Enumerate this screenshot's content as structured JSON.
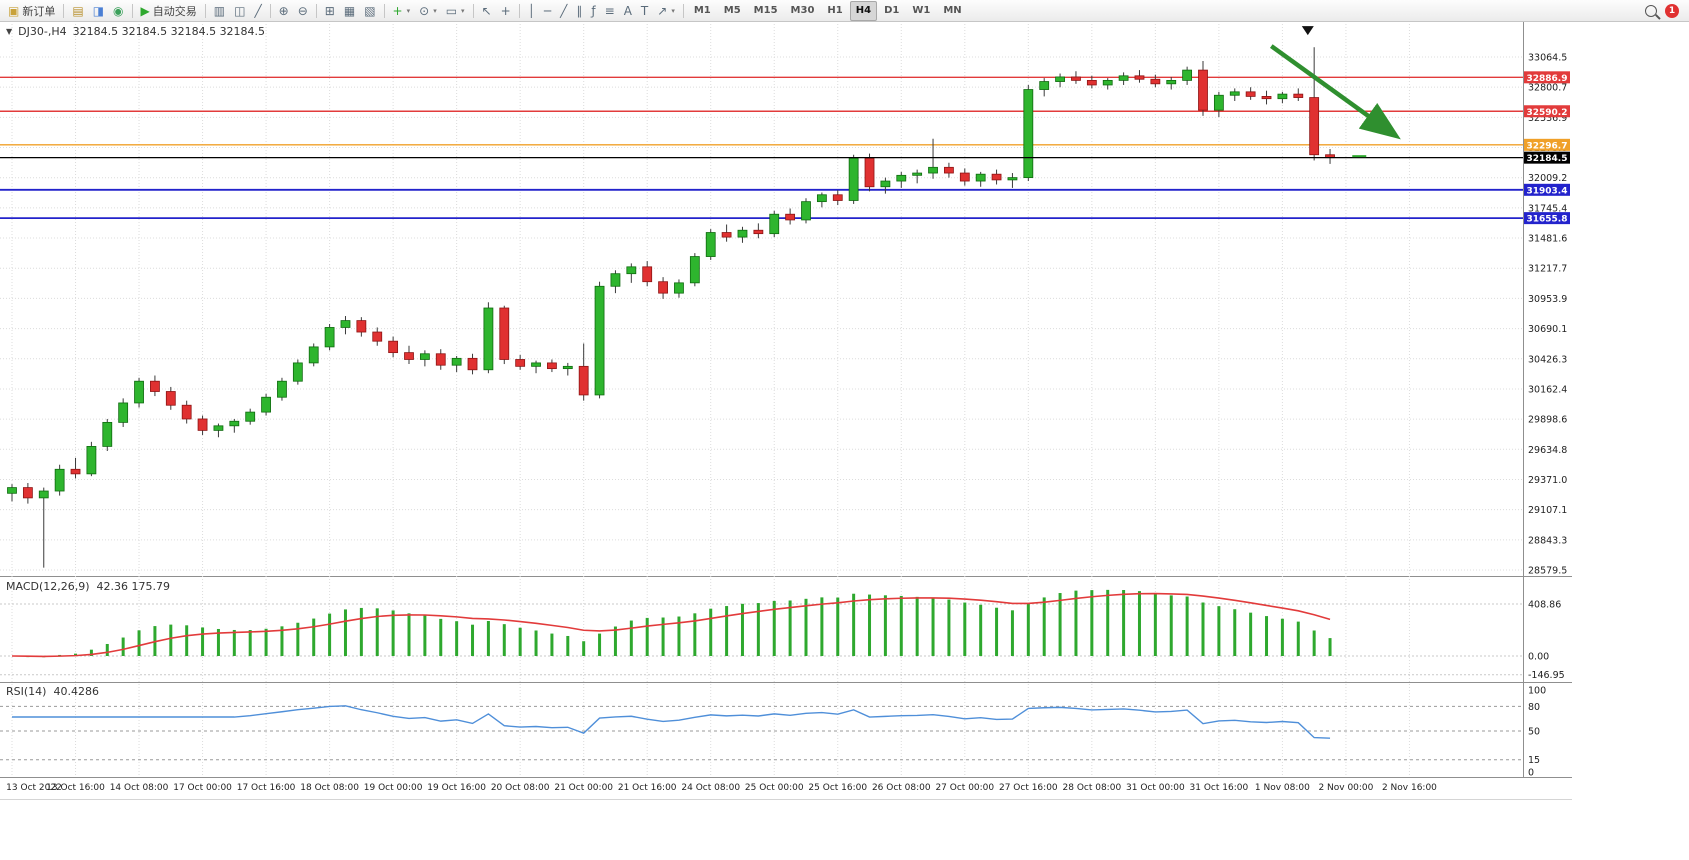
{
  "toolbar": {
    "groups": [
      {
        "items": [
          {
            "name": "new-order-button",
            "glyph": "▣",
            "glyph_color": "#c9a23a",
            "label": "新订单"
          }
        ]
      },
      {
        "items": [
          {
            "name": "charts-icon",
            "glyph": "▤",
            "glyph_color": "#b8912f"
          },
          {
            "name": "profile-icon",
            "glyph": "◨",
            "glyph_color": "#4a7fd4"
          },
          {
            "name": "support-icon",
            "glyph": "◉",
            "glyph_color": "#3aa05a"
          }
        ]
      },
      {
        "items": [
          {
            "name": "autotrade-button",
            "glyph": "▶",
            "glyph_color": "#2ea82e",
            "label": "自动交易"
          }
        ]
      },
      {
        "items": [
          {
            "name": "bar-chart-icon",
            "glyph": "▥"
          },
          {
            "name": "candlestick-chart-icon",
            "glyph": "◫"
          },
          {
            "name": "line-chart-icon",
            "glyph": "╱"
          }
        ]
      },
      {
        "items": [
          {
            "name": "zoom-in-icon",
            "glyph": "⊕"
          },
          {
            "name": "zoom-out-icon",
            "glyph": "⊖"
          }
        ]
      },
      {
        "items": [
          {
            "name": "tile-windows-icon",
            "glyph": "⊞"
          },
          {
            "name": "auto-arrange-icon",
            "glyph": "▦"
          },
          {
            "name": "chart-shift-icon",
            "glyph": "▧"
          }
        ]
      },
      {
        "items": [
          {
            "name": "new-chart-button",
            "glyph": "+",
            "glyph_color": "#2ea82e",
            "caret": true
          },
          {
            "name": "period-selector-button",
            "glyph": "⊙",
            "caret": true
          },
          {
            "name": "template-button",
            "glyph": "▭",
            "caret": true
          }
        ]
      },
      {
        "items": [
          {
            "name": "cursor-tool-icon",
            "glyph": "↖"
          },
          {
            "name": "crosshair-tool-icon",
            "glyph": "+"
          }
        ]
      },
      {
        "items": [
          {
            "name": "vertical-line-tool-icon",
            "glyph": "│"
          },
          {
            "name": "horizontal-line-tool-icon",
            "glyph": "─"
          },
          {
            "name": "trendline-tool-icon",
            "glyph": "╱"
          },
          {
            "name": "channel-tool-icon",
            "glyph": "∥"
          },
          {
            "name": "fibonacci-tool-icon",
            "glyph": "ƒ"
          },
          {
            "name": "fibo-lines-tool-icon",
            "glyph": "≡"
          },
          {
            "name": "text-tool-icon",
            "glyph": "A"
          },
          {
            "name": "text-label-tool-icon",
            "glyph": "T"
          },
          {
            "name": "arrows-tool-icon",
            "glyph": "↗",
            "caret": true
          }
        ]
      },
      {
        "type": "timeframes"
      }
    ],
    "timeframes": [
      "M1",
      "M5",
      "M15",
      "M30",
      "H1",
      "H4",
      "D1",
      "W1",
      "MN"
    ],
    "active_timeframe": "H4",
    "notification_count": "1"
  },
  "chart": {
    "collapse_icon": "▼",
    "symbol_period": "DJ30-,H4",
    "quotes": "32184.5 32184.5 32184.5 32184.5"
  },
  "indicators": {
    "macd": {
      "name": "MACD(12,26,9)",
      "values": "42.36 175.79"
    },
    "rsi": {
      "name": "RSI(14)",
      "value": "40.4286"
    }
  },
  "chart_data": {
    "type": "candlestick",
    "symbol": "DJ30-",
    "timeframe": "H4",
    "current_price": 32184.5,
    "colors": {
      "up": "#2eb52e",
      "up_border": "#0f6a0f",
      "down": "#e03131",
      "down_border": "#8d1414",
      "grid": "#dcdcdc",
      "line_red": "#e23b3b",
      "line_blue": "#2323cc",
      "line_orange": "#f0a028",
      "price_line": "#000000",
      "arrow": "#2f8f2f"
    },
    "y_axis_labels": [
      33064.5,
      32800.7,
      32536.9,
      32273.0,
      32009.2,
      31745.4,
      31481.6,
      31217.7,
      30953.9,
      30690.1,
      30426.3,
      30162.4,
      29898.6,
      29634.8,
      29371.0,
      29107.1,
      28843.3,
      28579.5
    ],
    "x_axis_labels": [
      "13 Oct 2022",
      "13 Oct 16:00",
      "14 Oct 08:00",
      "17 Oct 00:00",
      "17 Oct 16:00",
      "18 Oct 08:00",
      "19 Oct 00:00",
      "19 Oct 16:00",
      "20 Oct 08:00",
      "21 Oct 00:00",
      "21 Oct 16:00",
      "24 Oct 08:00",
      "25 Oct 00:00",
      "25 Oct 16:00",
      "26 Oct 08:00",
      "27 Oct 00:00",
      "27 Oct 16:00",
      "28 Oct 08:00",
      "31 Oct 00:00",
      "31 Oct 16:00",
      "1 Nov 08:00",
      "2 Nov 00:00",
      "2 Nov 16:00"
    ],
    "x_label_every_n_candles": 4,
    "candles_ohlc": [
      [
        29250,
        29330,
        29180,
        29300
      ],
      [
        29300,
        29340,
        29160,
        29210
      ],
      [
        29210,
        29300,
        28600,
        29270
      ],
      [
        29270,
        29500,
        29230,
        29460
      ],
      [
        29460,
        29560,
        29380,
        29420
      ],
      [
        29420,
        29700,
        29400,
        29660
      ],
      [
        29660,
        29900,
        29620,
        29870
      ],
      [
        29870,
        30080,
        29830,
        30040
      ],
      [
        30040,
        30260,
        30000,
        30230
      ],
      [
        30230,
        30280,
        30100,
        30140
      ],
      [
        30140,
        30180,
        29980,
        30020
      ],
      [
        30020,
        30060,
        29860,
        29900
      ],
      [
        29900,
        29930,
        29760,
        29800
      ],
      [
        29800,
        29860,
        29740,
        29840
      ],
      [
        29840,
        29900,
        29780,
        29880
      ],
      [
        29880,
        29990,
        29850,
        29960
      ],
      [
        29960,
        30120,
        29930,
        30090
      ],
      [
        30090,
        30260,
        30060,
        30230
      ],
      [
        30230,
        30420,
        30200,
        30390
      ],
      [
        30390,
        30560,
        30360,
        30530
      ],
      [
        30530,
        30730,
        30500,
        30700
      ],
      [
        30700,
        30800,
        30640,
        30760
      ],
      [
        30760,
        30790,
        30620,
        30660
      ],
      [
        30660,
        30700,
        30540,
        30580
      ],
      [
        30580,
        30620,
        30440,
        30480
      ],
      [
        30480,
        30540,
        30380,
        30420
      ],
      [
        30420,
        30500,
        30360,
        30470
      ],
      [
        30470,
        30510,
        30330,
        30370
      ],
      [
        30370,
        30450,
        30310,
        30430
      ],
      [
        30430,
        30470,
        30290,
        30330
      ],
      [
        30330,
        30920,
        30300,
        30870
      ],
      [
        30870,
        30890,
        30380,
        30420
      ],
      [
        30420,
        30460,
        30330,
        30360
      ],
      [
        30360,
        30410,
        30300,
        30390
      ],
      [
        30390,
        30420,
        30310,
        30340
      ],
      [
        30340,
        30390,
        30280,
        30360
      ],
      [
        30360,
        30560,
        30060,
        30110
      ],
      [
        30110,
        31100,
        30080,
        31060
      ],
      [
        31060,
        31200,
        31000,
        31170
      ],
      [
        31170,
        31260,
        31090,
        31230
      ],
      [
        31230,
        31280,
        31060,
        31100
      ],
      [
        31100,
        31140,
        30950,
        31000
      ],
      [
        31000,
        31120,
        30960,
        31090
      ],
      [
        31090,
        31350,
        31060,
        31320
      ],
      [
        31320,
        31560,
        31290,
        31530
      ],
      [
        31530,
        31600,
        31450,
        31490
      ],
      [
        31490,
        31580,
        31440,
        31550
      ],
      [
        31550,
        31610,
        31480,
        31520
      ],
      [
        31520,
        31720,
        31490,
        31690
      ],
      [
        31690,
        31740,
        31600,
        31640
      ],
      [
        31640,
        31830,
        31610,
        31800
      ],
      [
        31800,
        31880,
        31750,
        31860
      ],
      [
        31860,
        31900,
        31770,
        31810
      ],
      [
        31810,
        32210,
        31780,
        32180
      ],
      [
        32180,
        32220,
        31890,
        31930
      ],
      [
        31930,
        32010,
        31870,
        31980
      ],
      [
        31980,
        32060,
        31920,
        32030
      ],
      [
        32030,
        32080,
        31960,
        32050
      ],
      [
        32050,
        32350,
        32000,
        32100
      ],
      [
        32100,
        32140,
        32010,
        32050
      ],
      [
        32050,
        32090,
        31940,
        31980
      ],
      [
        31980,
        32060,
        31930,
        32040
      ],
      [
        32040,
        32080,
        31950,
        31990
      ],
      [
        31990,
        32050,
        31920,
        32010
      ],
      [
        32010,
        32820,
        31980,
        32780
      ],
      [
        32780,
        32880,
        32720,
        32850
      ],
      [
        32850,
        32920,
        32800,
        32890
      ],
      [
        32890,
        32940,
        32830,
        32860
      ],
      [
        32860,
        32900,
        32790,
        32820
      ],
      [
        32820,
        32880,
        32780,
        32860
      ],
      [
        32860,
        32930,
        32820,
        32900
      ],
      [
        32900,
        32950,
        32840,
        32870
      ],
      [
        32870,
        32910,
        32800,
        32830
      ],
      [
        32830,
        32890,
        32780,
        32860
      ],
      [
        32860,
        32980,
        32820,
        32950
      ],
      [
        32950,
        33030,
        32550,
        32600
      ],
      [
        32600,
        32760,
        32540,
        32730
      ],
      [
        32730,
        32790,
        32680,
        32760
      ],
      [
        32760,
        32800,
        32690,
        32720
      ],
      [
        32720,
        32770,
        32650,
        32700
      ],
      [
        32700,
        32760,
        32660,
        32740
      ],
      [
        32740,
        32790,
        32680,
        32710
      ],
      [
        32710,
        33150,
        32160,
        32210
      ],
      [
        32210,
        32260,
        32130,
        32184.5
      ]
    ],
    "h_lines": [
      {
        "price": 32886.9,
        "color": "#e23b3b",
        "label": "32886.9"
      },
      {
        "price": 32590.2,
        "color": "#e23b3b",
        "label": "32590.2"
      },
      {
        "price": 32296.7,
        "color": "#f0a028",
        "label": "32296.7"
      },
      {
        "price": 31903.4,
        "color": "#2323cc",
        "label": "31903.4"
      },
      {
        "price": 31655.8,
        "color": "#2323cc",
        "label": "31655.8"
      }
    ],
    "price_marker": {
      "price": 32184.5,
      "color": "#000000",
      "label": "32184.5"
    },
    "annotations": {
      "trend_arrow": {
        "from_bar": 79.3,
        "from_price": 33160,
        "to_bar": 87.0,
        "to_price": 32390,
        "color": "#2f8f2f"
      },
      "sell_marker": {
        "bar": 81.6,
        "price": 33300,
        "shape": "triangle-down",
        "color": "#111111"
      },
      "last_price_tick": {
        "bar": 84.4,
        "price": 32184.5,
        "color": "#2ea82e"
      }
    },
    "macd_panel": {
      "axis_labels": [
        "408.86",
        "0.00",
        "-146.95"
      ],
      "params": [
        12,
        26,
        9
      ],
      "bar_color": "#2ea82e",
      "signal_color": "#e23b3b"
    },
    "rsi_panel": {
      "axis_labels": [
        100,
        80,
        50,
        15,
        0
      ],
      "levels": [
        80,
        50,
        15
      ],
      "period": 14,
      "line_color": "#4f8fd9"
    }
  }
}
